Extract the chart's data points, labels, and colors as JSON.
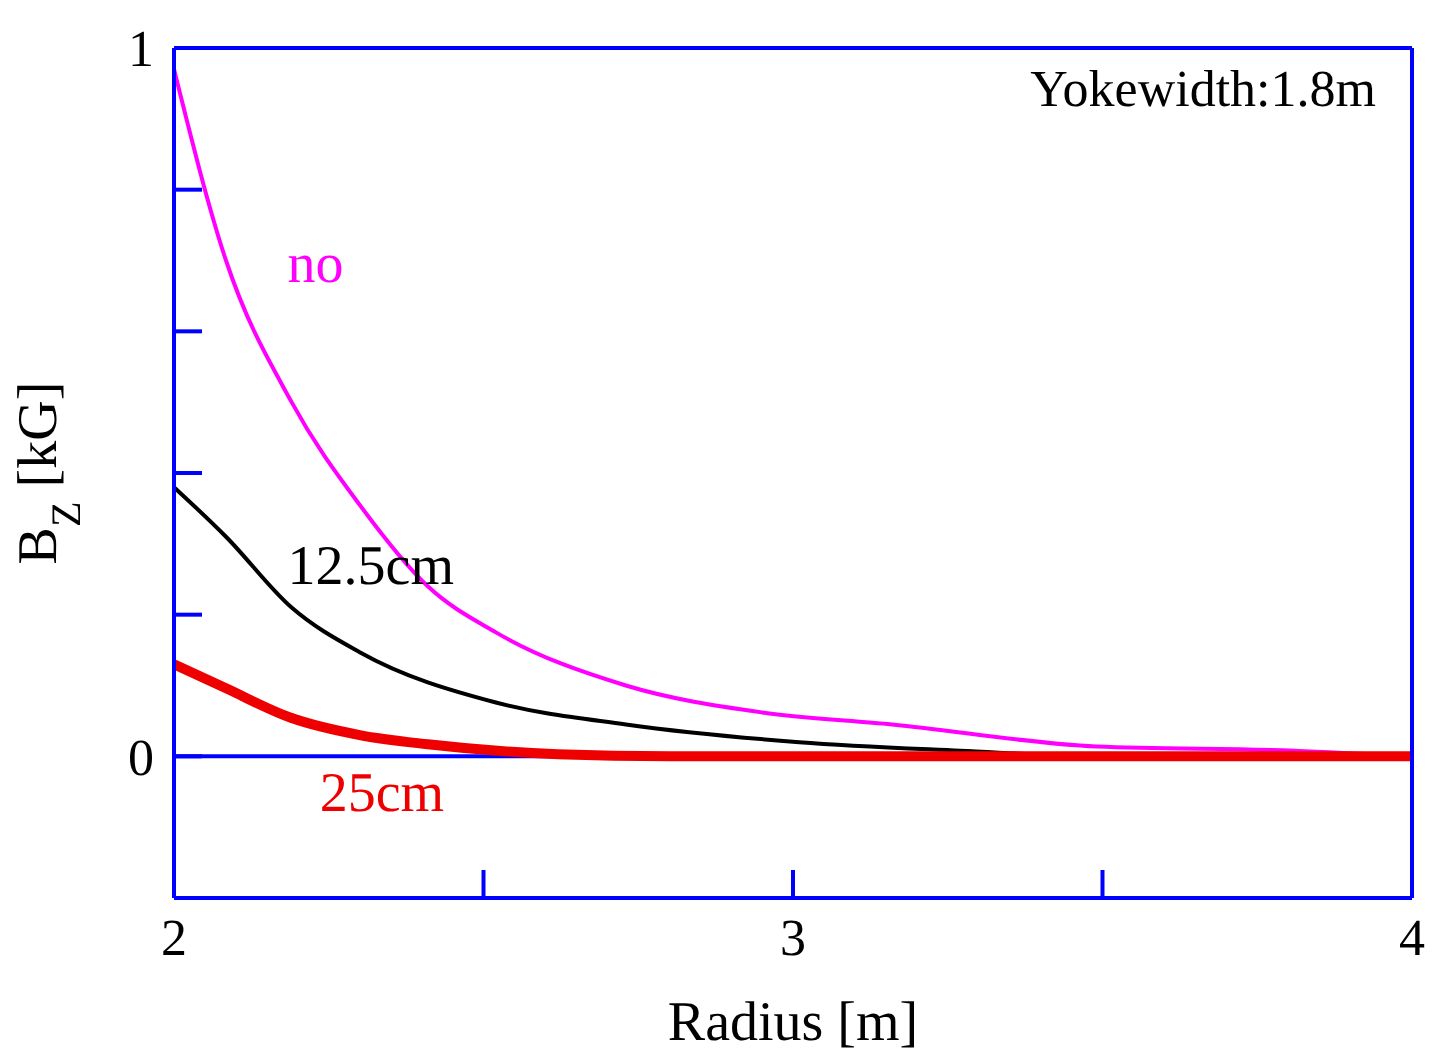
{
  "chart_data": {
    "type": "line",
    "xlabel": "Radius [m]",
    "ylabel": "B$_{Z}$ [kG]",
    "annotations": [
      "Yokewidth:1.8m"
    ],
    "xlim": [
      2,
      4
    ],
    "xticks": [
      2,
      {
        "value": 2.5,
        "label": null
      },
      3,
      {
        "value": 3.5,
        "label": null
      },
      4
    ],
    "ylim": [
      -0.2,
      1
    ],
    "yticks": [
      0,
      {
        "value": 0.2,
        "label": null
      },
      {
        "value": 0.4,
        "label": null
      },
      {
        "value": 0.6,
        "label": null
      },
      {
        "value": 0.8,
        "label": null
      },
      1
    ],
    "ref_lines": [
      {
        "axis": "y",
        "value": 0,
        "color": "#0000ff"
      }
    ],
    "marker": "none",
    "line_style": "solid",
    "series": [
      {
        "name": "no",
        "color": "#ff00ff",
        "x": [
          2,
          2.084,
          2.19,
          2.3,
          2.41,
          2.52,
          2.73,
          2.95,
          3.16,
          3.49,
          3.81,
          4
        ],
        "values": [
          0.97,
          0.7,
          0.5,
          0.355,
          0.24,
          0.175,
          0.1,
          0.062,
          0.045,
          0.014,
          0.008,
          0
        ]
      },
      {
        "name": "12.5cm",
        "color": "#000000",
        "x": [
          2,
          2.084,
          2.19,
          2.3,
          2.52,
          2.73,
          3.01,
          3.27,
          3.5,
          4
        ],
        "values": [
          0.38,
          0.31,
          0.21,
          0.147,
          0.076,
          0.045,
          0.02,
          0.008,
          0,
          0
        ]
      },
      {
        "name": "25cm",
        "color": "#ee0000",
        "x": [
          2,
          2.084,
          2.19,
          2.3,
          2.41,
          2.62,
          2.8,
          4
        ],
        "values": [
          0.13,
          0.096,
          0.054,
          0.03,
          0.017,
          0.003,
          0,
          0
        ]
      }
    ]
  }
}
